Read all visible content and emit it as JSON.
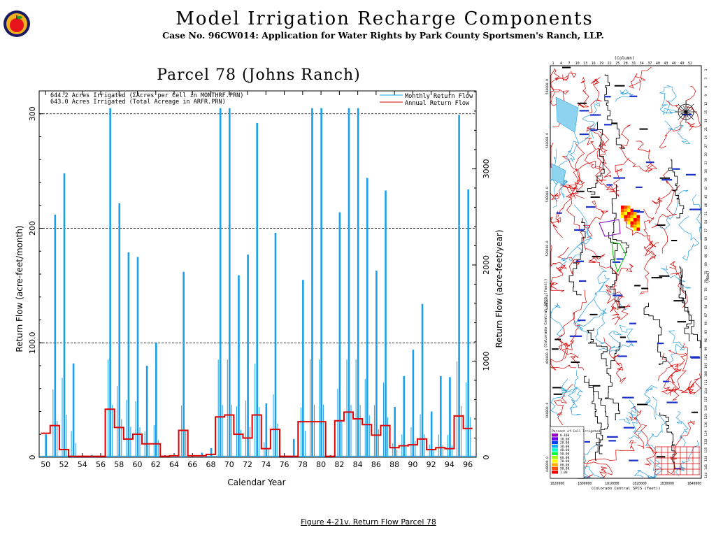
{
  "header": {
    "title": "Model Irrigation Recharge Components",
    "subtitle": "Case No. 96CW014: Application for Water Rights by Park County Sportsmen's Ranch, LLP."
  },
  "caption": "Figure 4-21v.  Return Flow Parcel 78",
  "colors": {
    "monthly": "#1aa0e8",
    "annual": "#e00000",
    "logo_apple": "#e8141c",
    "logo_ring": "#f0b020"
  },
  "chart_data": {
    "type": "line",
    "title": "Parcel 78 (Johns Ranch)",
    "xlabel": "Calendar Year",
    "ylabel": "Return Flow (acre-feet/month)",
    "y2label": "Return Flow (acre-feet/year)",
    "xlim": [
      1949.3,
      1996.9
    ],
    "ylim": [
      0,
      320
    ],
    "y2lim": [
      0,
      3810
    ],
    "x_ticks": [
      "50",
      "52",
      "54",
      "56",
      "58",
      "60",
      "62",
      "64",
      "66",
      "68",
      "70",
      "72",
      "74",
      "76",
      "78",
      "80",
      "82",
      "84",
      "86",
      "88",
      "90",
      "92",
      "94",
      "96"
    ],
    "y_ticks": [
      "0",
      "100.0",
      "200",
      "300"
    ],
    "y2_ticks": [
      "0",
      "1000",
      "2000",
      "3000"
    ],
    "gridlines_y": [
      100,
      200,
      300
    ],
    "notes": [
      "644.2 Acres Irrigated (ΣAcres per Cell in MONTHRF.PRN)",
      "643.0 Acres Irrigated (Total Acreage in ARFR.PRN)"
    ],
    "legend_position": "top-right",
    "series": [
      {
        "name": "Monthly Return Flow",
        "peaks": [
          [
            1950,
            20
          ],
          [
            1951,
            212
          ],
          [
            1952,
            248
          ],
          [
            1953,
            82
          ],
          [
            1955,
            2
          ],
          [
            1957,
            305
          ],
          [
            1958,
            222
          ],
          [
            1959,
            179
          ],
          [
            1960,
            175
          ],
          [
            1961,
            80
          ],
          [
            1962,
            100
          ],
          [
            1964,
            2
          ],
          [
            1965,
            162
          ],
          [
            1967,
            4
          ],
          [
            1968,
            8
          ],
          [
            1969,
            305
          ],
          [
            1970,
            305
          ],
          [
            1971,
            159
          ],
          [
            1972,
            177
          ],
          [
            1973,
            292
          ],
          [
            1974,
            47
          ],
          [
            1975,
            196
          ],
          [
            1977,
            16
          ],
          [
            1978,
            155
          ],
          [
            1979,
            305
          ],
          [
            1980,
            305
          ],
          [
            1982,
            214
          ],
          [
            1983,
            305
          ],
          [
            1984,
            305
          ],
          [
            1985,
            244
          ],
          [
            1986,
            163
          ],
          [
            1987,
            233
          ],
          [
            1988,
            44
          ],
          [
            1989,
            71
          ],
          [
            1990,
            94
          ],
          [
            1991,
            134
          ],
          [
            1992,
            40
          ],
          [
            1993,
            71
          ],
          [
            1994,
            70
          ],
          [
            1995,
            299
          ],
          [
            1996,
            234
          ]
        ]
      },
      {
        "name": "Annual Return Flow",
        "years": [
          1950,
          1951,
          1952,
          1953,
          1954,
          1955,
          1956,
          1957,
          1958,
          1959,
          1960,
          1961,
          1962,
          1963,
          1964,
          1965,
          1966,
          1967,
          1968,
          1969,
          1970,
          1971,
          1972,
          1973,
          1974,
          1975,
          1976,
          1977,
          1978,
          1979,
          1980,
          1981,
          1982,
          1983,
          1984,
          1985,
          1986,
          1987,
          1988,
          1989,
          1990,
          1991,
          1992,
          1993,
          1994,
          1995,
          1996
        ],
        "values": [
          250,
          330,
          80,
          10,
          10,
          10,
          10,
          500,
          310,
          190,
          240,
          140,
          140,
          10,
          15,
          280,
          15,
          15,
          30,
          420,
          440,
          240,
          200,
          440,
          90,
          290,
          10,
          10,
          370,
          370,
          370,
          10,
          380,
          470,
          400,
          340,
          230,
          330,
          100,
          120,
          130,
          190,
          80,
          100,
          90,
          430,
          300
        ]
      }
    ]
  },
  "map": {
    "top_label": "(Column)",
    "col_ticks": [
      "1",
      "4",
      "7",
      "10",
      "13",
      "16",
      "19",
      "22",
      "25",
      "28",
      "31",
      "34",
      "37",
      "40",
      "43",
      "46",
      "49",
      "52"
    ],
    "row_ticks": [
      "1",
      "3",
      "6",
      "9",
      "12",
      "15",
      "18",
      "21",
      "24",
      "27",
      "30",
      "33",
      "36",
      "39",
      "42",
      "45",
      "48",
      "51",
      "54",
      "57",
      "60",
      "63",
      "66",
      "69",
      "72",
      "75",
      "78",
      "81",
      "84",
      "87",
      "90",
      "93",
      "96",
      "99",
      "102",
      "105",
      "108",
      "111",
      "114",
      "117",
      "120",
      "123",
      "126",
      "129",
      "132",
      "135",
      "138",
      "141",
      "144"
    ],
    "left_axis_label": "(Colorado Central SPCS (feet))",
    "left_ticks": [
      "580000.0",
      "560000.0",
      "540000.0",
      "520000.0",
      "500000.0",
      "480000.0",
      "460000.0",
      "440000.0"
    ],
    "bottom_ticks": [
      "1820000",
      "1800000",
      "1810000",
      "1820000",
      "1830000",
      "1840000"
    ],
    "bottom_label": "(Colorado Central SPCS (feet))",
    "right_label": "(Row)",
    "legend_title": "Percent of Cell Irrigated",
    "legend_items": [
      "0-100",
      "10.00",
      "20.00",
      "30.00",
      "40.00",
      "50.00",
      "60.00",
      "70.00",
      "80.00",
      "90.00",
      "1.00"
    ],
    "legend_colors": [
      "#9b00c8",
      "#6a00ff",
      "#0040ff",
      "#00b0ff",
      "#00ffd0",
      "#00ff40",
      "#a0ff00",
      "#ffff00",
      "#ffb000",
      "#ff5000",
      "#ff0000"
    ]
  }
}
